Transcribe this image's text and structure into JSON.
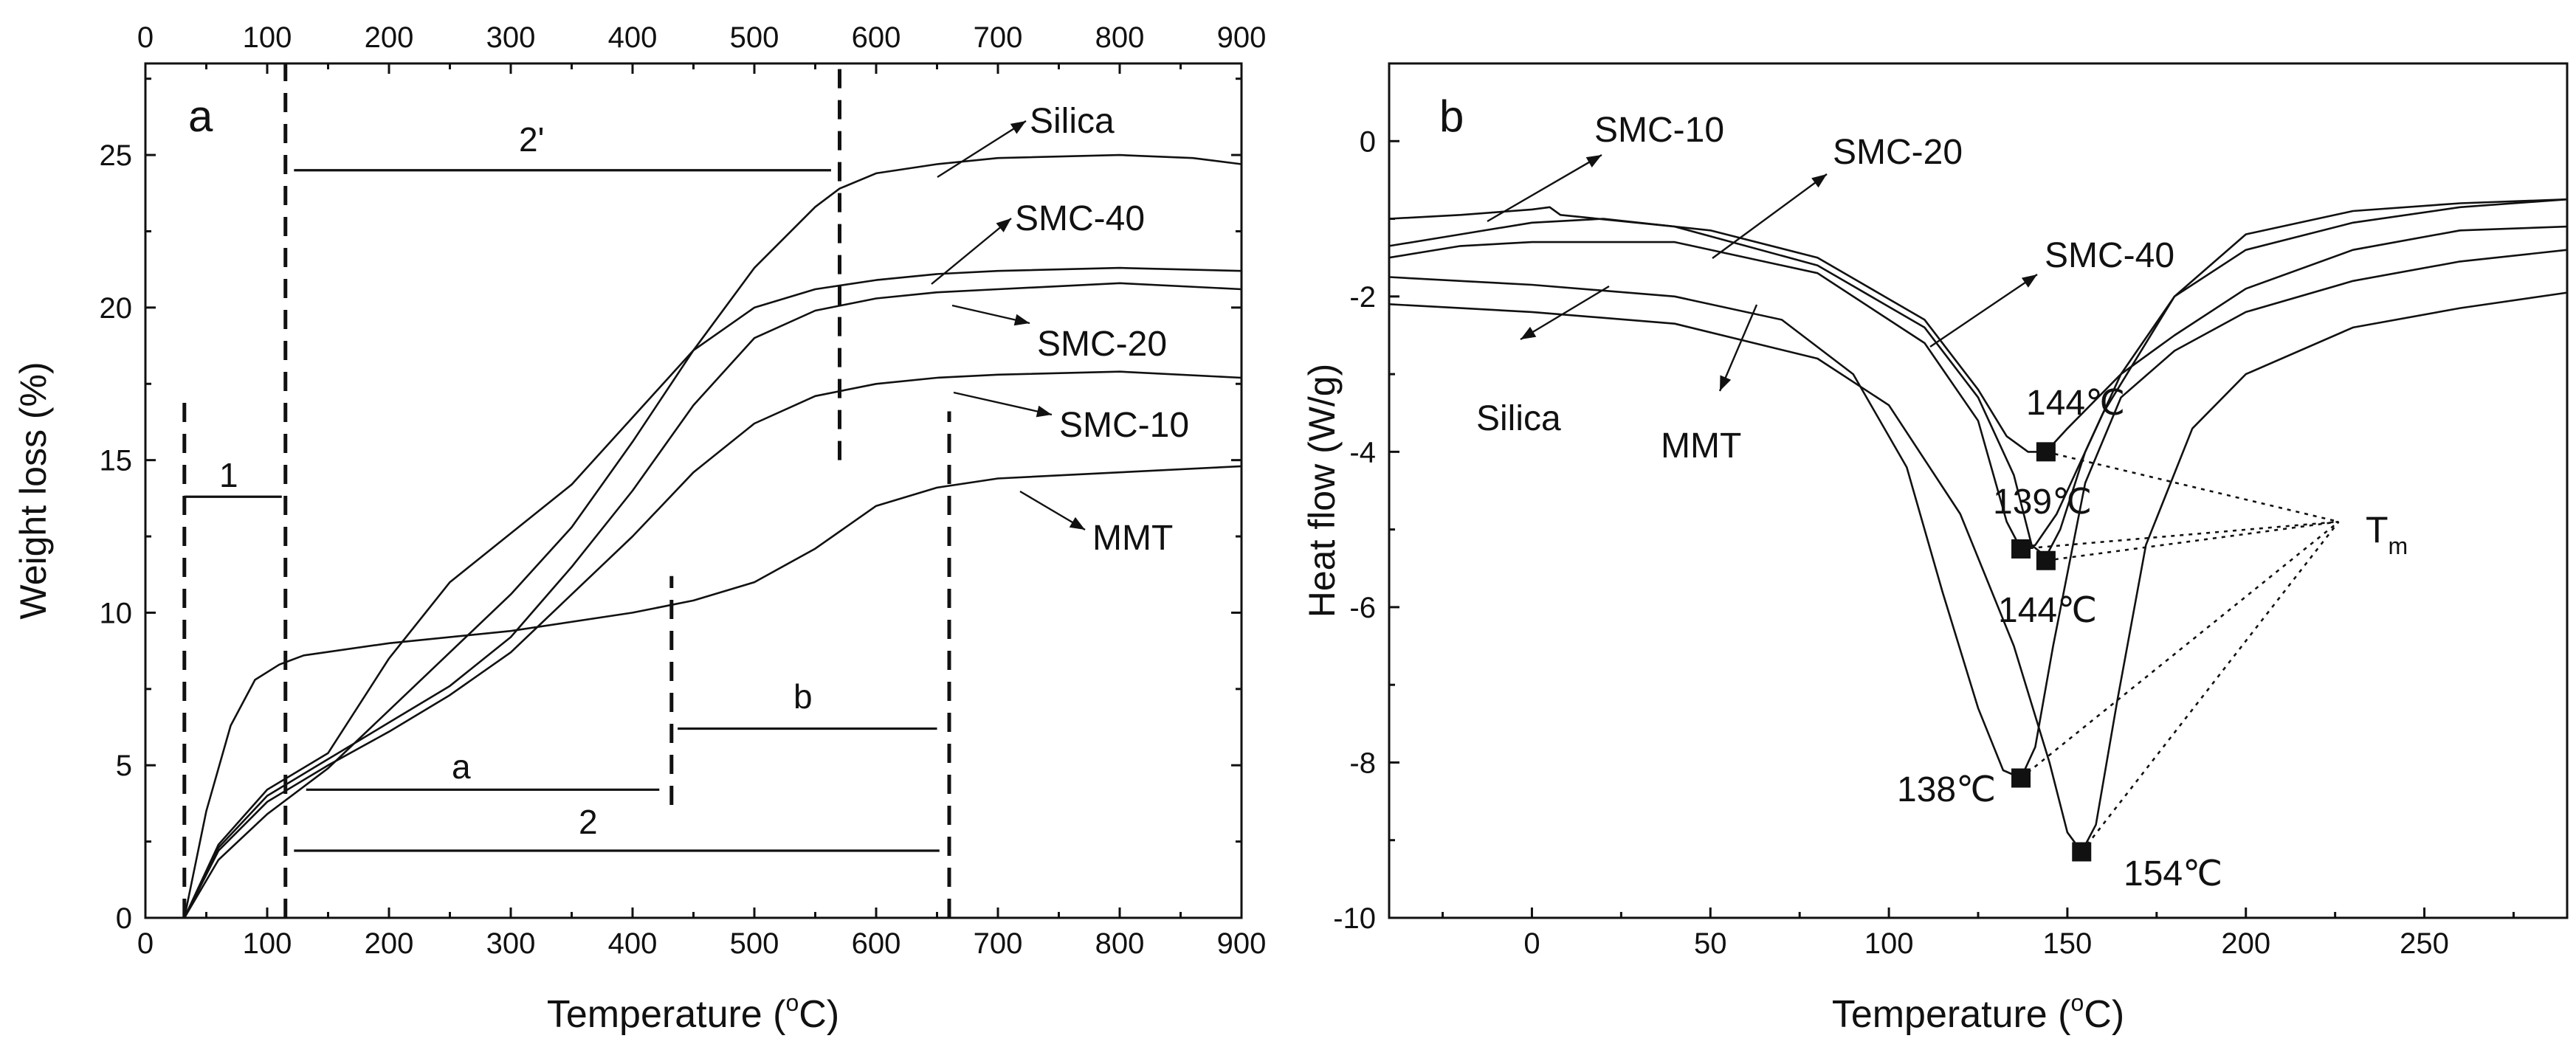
{
  "chart_data": [
    {
      "panel_letter": "a",
      "type": "line",
      "xlabel": "Temperature (°C)",
      "xlabel_main": "Temperature (",
      "xlabel_deg": "o",
      "xlabel_unit": "C)",
      "ylabel": "Weight loss (%)",
      "xlim": [
        0,
        900
      ],
      "ylim": [
        0,
        28
      ],
      "x_ticks": [
        0,
        100,
        200,
        300,
        400,
        500,
        600,
        700,
        800,
        900
      ],
      "y_ticks": [
        0,
        5,
        10,
        15,
        20,
        25
      ],
      "series": [
        {
          "name": "Silica",
          "points": [
            [
              32,
              0
            ],
            [
              60,
              1.9
            ],
            [
              100,
              3.4
            ],
            [
              150,
              4.9
            ],
            [
              200,
              6.8
            ],
            [
              250,
              8.7
            ],
            [
              300,
              10.6
            ],
            [
              350,
              12.8
            ],
            [
              400,
              15.6
            ],
            [
              450,
              18.6
            ],
            [
              500,
              21.3
            ],
            [
              550,
              23.3
            ],
            [
              570,
              23.9
            ],
            [
              600,
              24.4
            ],
            [
              650,
              24.7
            ],
            [
              700,
              24.9
            ],
            [
              800,
              25.0
            ],
            [
              860,
              24.9
            ],
            [
              900,
              24.7
            ]
          ]
        },
        {
          "name": "SMC-40",
          "points": [
            [
              32,
              0
            ],
            [
              60,
              2.4
            ],
            [
              100,
              4.2
            ],
            [
              150,
              5.4
            ],
            [
              200,
              8.5
            ],
            [
              250,
              11.0
            ],
            [
              300,
              12.6
            ],
            [
              350,
              14.2
            ],
            [
              400,
              16.4
            ],
            [
              450,
              18.6
            ],
            [
              500,
              20.0
            ],
            [
              550,
              20.6
            ],
            [
              600,
              20.9
            ],
            [
              650,
              21.1
            ],
            [
              700,
              21.2
            ],
            [
              800,
              21.3
            ],
            [
              900,
              21.2
            ]
          ]
        },
        {
          "name": "SMC-20",
          "points": [
            [
              32,
              0
            ],
            [
              60,
              2.3
            ],
            [
              100,
              4.0
            ],
            [
              150,
              5.2
            ],
            [
              200,
              6.4
            ],
            [
              250,
              7.6
            ],
            [
              300,
              9.2
            ],
            [
              350,
              11.5
            ],
            [
              400,
              14.0
            ],
            [
              450,
              16.8
            ],
            [
              500,
              19.0
            ],
            [
              550,
              19.9
            ],
            [
              600,
              20.3
            ],
            [
              650,
              20.5
            ],
            [
              700,
              20.6
            ],
            [
              800,
              20.8
            ],
            [
              900,
              20.6
            ]
          ]
        },
        {
          "name": "SMC-10",
          "points": [
            [
              32,
              0
            ],
            [
              60,
              2.2
            ],
            [
              100,
              3.8
            ],
            [
              150,
              5.0
            ],
            [
              200,
              6.1
            ],
            [
              250,
              7.3
            ],
            [
              300,
              8.7
            ],
            [
              350,
              10.6
            ],
            [
              400,
              12.5
            ],
            [
              450,
              14.6
            ],
            [
              500,
              16.2
            ],
            [
              550,
              17.1
            ],
            [
              600,
              17.5
            ],
            [
              650,
              17.7
            ],
            [
              700,
              17.8
            ],
            [
              800,
              17.9
            ],
            [
              900,
              17.7
            ]
          ]
        },
        {
          "name": "MMT",
          "points": [
            [
              32,
              0
            ],
            [
              50,
              3.5
            ],
            [
              70,
              6.3
            ],
            [
              90,
              7.8
            ],
            [
              110,
              8.3
            ],
            [
              130,
              8.6
            ],
            [
              200,
              9.0
            ],
            [
              300,
              9.4
            ],
            [
              400,
              10.0
            ],
            [
              450,
              10.4
            ],
            [
              500,
              11.0
            ],
            [
              550,
              12.1
            ],
            [
              600,
              13.5
            ],
            [
              650,
              14.1
            ],
            [
              700,
              14.4
            ],
            [
              800,
              14.6
            ],
            [
              900,
              14.8
            ]
          ]
        }
      ],
      "region_markers": [
        {
          "label": "1",
          "x_from": 32,
          "x_to": 112,
          "y": 13.8
        },
        {
          "label": "2'",
          "x_from": 122,
          "x_to": 563,
          "y": 24.5
        },
        {
          "label": "a",
          "x_from": 132,
          "x_to": 422,
          "y": 4.2
        },
        {
          "label": "b",
          "x_from": 437,
          "x_to": 650,
          "y": 6.2
        },
        {
          "label": "2",
          "x_from": 122,
          "x_to": 652,
          "y": 2.2
        }
      ],
      "vertical_dashes": [
        {
          "x": 32,
          "y_from": 0,
          "y_to": 17.0
        },
        {
          "x": 115,
          "y_from": 0,
          "y_to": 28
        },
        {
          "x": 570,
          "y_from": 15.0,
          "y_to": 28
        },
        {
          "x": 432,
          "y_from": 3.7,
          "y_to": 11.2
        },
        {
          "x": 660,
          "y_from": 0,
          "y_to": 16.6
        }
      ]
    },
    {
      "panel_letter": "b",
      "type": "line",
      "xlabel": "Temperature (°C)",
      "xlabel_main": "Temperature (",
      "xlabel_deg": "o",
      "xlabel_unit": "C)",
      "ylabel": "Heat flow (W/g)",
      "xlim": [
        -40,
        290
      ],
      "ylim": [
        -10,
        1
      ],
      "x_ticks": [
        0,
        50,
        100,
        150,
        200,
        250
      ],
      "y_ticks": [
        -10,
        -8,
        -6,
        -4,
        -2,
        0
      ],
      "series": [
        {
          "name": "SMC-10",
          "points": [
            [
              -40,
              -1.0
            ],
            [
              -20,
              -0.95
            ],
            [
              0,
              -0.88
            ],
            [
              5,
              -0.85
            ],
            [
              8,
              -0.95
            ],
            [
              40,
              -1.1
            ],
            [
              80,
              -1.6
            ],
            [
              110,
              -2.4
            ],
            [
              125,
              -3.3
            ],
            [
              135,
              -4.3
            ],
            [
              140,
              -5.2
            ],
            [
              144,
              -5.35
            ],
            [
              148,
              -5.0
            ],
            [
              155,
              -4.0
            ],
            [
              165,
              -3.0
            ],
            [
              180,
              -2.0
            ],
            [
              200,
              -1.4
            ],
            [
              230,
              -1.05
            ],
            [
              260,
              -0.85
            ],
            [
              290,
              -0.75
            ]
          ]
        },
        {
          "name": "SMC-20",
          "points": [
            [
              -40,
              -1.35
            ],
            [
              -20,
              -1.2
            ],
            [
              0,
              -1.05
            ],
            [
              20,
              -1.0
            ],
            [
              50,
              -1.15
            ],
            [
              80,
              -1.5
            ],
            [
              110,
              -2.3
            ],
            [
              125,
              -3.2
            ],
            [
              133,
              -3.8
            ],
            [
              139,
              -4.0
            ],
            [
              144,
              -4.0
            ],
            [
              150,
              -3.7
            ],
            [
              165,
              -3.0
            ],
            [
              180,
              -2.5
            ],
            [
              200,
              -1.9
            ],
            [
              230,
              -1.4
            ],
            [
              260,
              -1.15
            ],
            [
              290,
              -1.1
            ]
          ]
        },
        {
          "name": "SMC-40",
          "points": [
            [
              -40,
              -1.5
            ],
            [
              -20,
              -1.35
            ],
            [
              0,
              -1.3
            ],
            [
              40,
              -1.3
            ],
            [
              80,
              -1.7
            ],
            [
              110,
              -2.6
            ],
            [
              125,
              -3.6
            ],
            [
              133,
              -4.9
            ],
            [
              137,
              -5.25
            ],
            [
              141,
              -5.2
            ],
            [
              147,
              -4.8
            ],
            [
              160,
              -3.5
            ],
            [
              180,
              -2.0
            ],
            [
              200,
              -1.2
            ],
            [
              230,
              -0.9
            ],
            [
              260,
              -0.8
            ],
            [
              290,
              -0.75
            ]
          ]
        },
        {
          "name": "Silica",
          "points": [
            [
              -40,
              -1.75
            ],
            [
              -20,
              -1.8
            ],
            [
              0,
              -1.85
            ],
            [
              40,
              -2.0
            ],
            [
              70,
              -2.3
            ],
            [
              90,
              -3.0
            ],
            [
              105,
              -4.2
            ],
            [
              115,
              -5.8
            ],
            [
              125,
              -7.3
            ],
            [
              132,
              -8.1
            ],
            [
              137,
              -8.2
            ],
            [
              141,
              -7.8
            ],
            [
              146,
              -6.5
            ],
            [
              155,
              -4.4
            ],
            [
              165,
              -3.3
            ],
            [
              180,
              -2.7
            ],
            [
              200,
              -2.2
            ],
            [
              230,
              -1.8
            ],
            [
              260,
              -1.55
            ],
            [
              290,
              -1.4
            ]
          ]
        },
        {
          "name": "MMT",
          "points": [
            [
              -40,
              -2.1
            ],
            [
              -20,
              -2.15
            ],
            [
              0,
              -2.2
            ],
            [
              40,
              -2.35
            ],
            [
              80,
              -2.8
            ],
            [
              100,
              -3.4
            ],
            [
              120,
              -4.8
            ],
            [
              135,
              -6.5
            ],
            [
              145,
              -8.0
            ],
            [
              150,
              -8.9
            ],
            [
              154,
              -9.15
            ],
            [
              158,
              -8.8
            ],
            [
              164,
              -7.2
            ],
            [
              172,
              -5.2
            ],
            [
              185,
              -3.7
            ],
            [
              200,
              -3.0
            ],
            [
              230,
              -2.4
            ],
            [
              260,
              -2.15
            ],
            [
              290,
              -1.95
            ]
          ]
        }
      ],
      "peaks": [
        {
          "label": "144℃",
          "x": 144,
          "y": -4.0
        },
        {
          "label": "139℃",
          "x": 137,
          "y": -5.25
        },
        {
          "label": "144℃",
          "x": 144,
          "y": -5.4
        },
        {
          "label": "138℃",
          "x": 137,
          "y": -8.2
        },
        {
          "label": "154℃",
          "x": 154,
          "y": -9.15
        }
      ],
      "tm_label": "T",
      "tm_sub": "m",
      "tm_point": [
        226,
        -4.9
      ]
    }
  ]
}
